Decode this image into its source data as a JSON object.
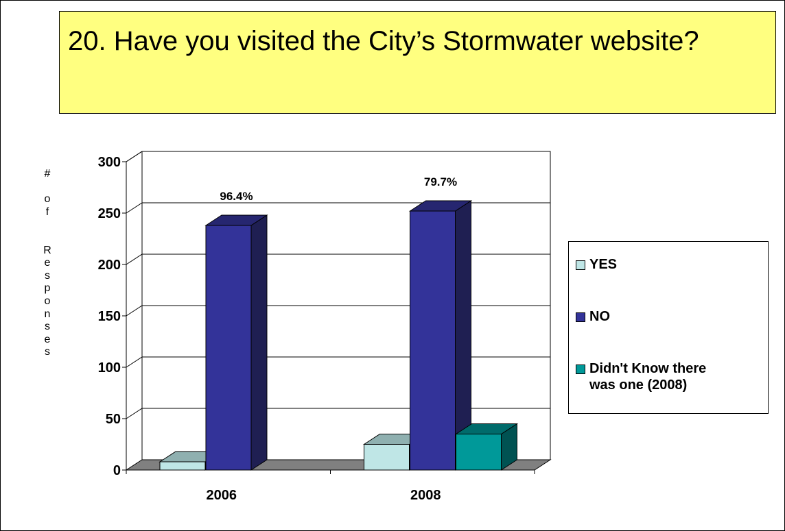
{
  "slide": {
    "title": "20. Have you visited the City’s Stormwater website?"
  },
  "chart_data": {
    "type": "bar",
    "categories": [
      "2006",
      "2008"
    ],
    "series": [
      {
        "name": "YES",
        "values": [
          8,
          25
        ],
        "color": "#bfe6e6",
        "side": "#8fb0b0",
        "top": "#8fb0b0"
      },
      {
        "name": "NO",
        "values": [
          238,
          252
        ],
        "color": "#333399",
        "side": "#1f1f52",
        "top": "#262670"
      },
      {
        "name": "Didn't Know there was one (2008)",
        "values": [
          null,
          35
        ],
        "color": "#009999",
        "side": "#005252",
        "top": "#006b6b"
      }
    ],
    "data_labels": [
      {
        "category": "2006",
        "series": "NO",
        "text": "96.4%"
      },
      {
        "category": "2008",
        "series": "NO",
        "text": "79.7%"
      }
    ],
    "ylabel": "# of Responses",
    "ylabel_chars": [
      "#",
      "",
      "o",
      "f",
      "",
      "",
      "R",
      "e",
      "s",
      "p",
      "o",
      "n",
      "s",
      "e",
      "s"
    ],
    "ylim": [
      0,
      300
    ],
    "yticks": [
      0,
      50,
      100,
      150,
      200,
      250,
      300
    ],
    "grid": true,
    "legend": "right",
    "three_d": true
  }
}
